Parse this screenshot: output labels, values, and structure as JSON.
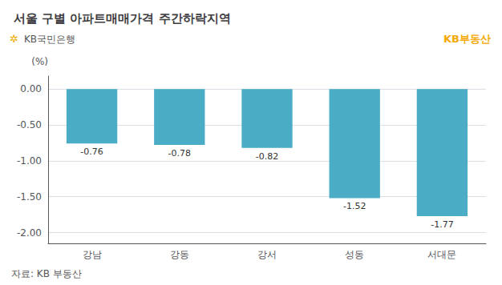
{
  "chart_data": {
    "type": "bar",
    "title": "서울 구별 아파트매매가격 주간하락지역",
    "ylabel": "(%)",
    "categories": [
      "강남",
      "강동",
      "강서",
      "성동",
      "서대문"
    ],
    "values": [
      -0.76,
      -0.78,
      -0.82,
      -1.52,
      -1.77
    ],
    "color": "#4BACC6",
    "ylim": [
      -2.15,
      0.18
    ],
    "yticks": [
      {
        "value": 0.0,
        "label": "0.00"
      },
      {
        "value": -0.5,
        "label": "-0.50"
      },
      {
        "value": -1.0,
        "label": "-1.00"
      },
      {
        "value": -1.5,
        "label": "-1.50"
      },
      {
        "value": -2.0,
        "label": "-2.00"
      }
    ],
    "grid": true,
    "data_labels": true,
    "annotations": [
      "✲",
      "KB국민은행",
      "KB부동산",
      "자료: KB 부동산"
    ]
  }
}
